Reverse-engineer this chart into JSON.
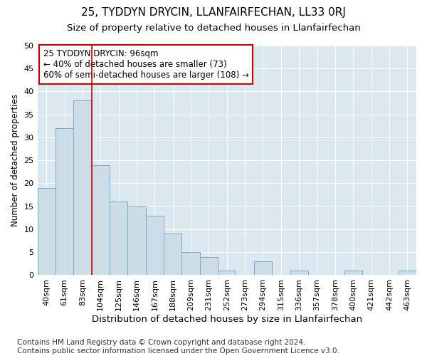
{
  "title": "25, TYDDYN DRYCIN, LLANFAIRFECHAN, LL33 0RJ",
  "subtitle": "Size of property relative to detached houses in Llanfairfechan",
  "xlabel": "Distribution of detached houses by size in Llanfairfechan",
  "ylabel": "Number of detached properties",
  "categories": [
    "40sqm",
    "61sqm",
    "83sqm",
    "104sqm",
    "125sqm",
    "146sqm",
    "167sqm",
    "188sqm",
    "209sqm",
    "231sqm",
    "252sqm",
    "273sqm",
    "294sqm",
    "315sqm",
    "336sqm",
    "357sqm",
    "378sqm",
    "400sqm",
    "421sqm",
    "442sqm",
    "463sqm"
  ],
  "values": [
    19,
    32,
    38,
    24,
    16,
    15,
    13,
    9,
    5,
    4,
    1,
    0,
    3,
    0,
    1,
    0,
    0,
    1,
    0,
    0,
    1
  ],
  "bar_color": "#ccdde8",
  "bar_edge_color": "#7aaac8",
  "vline_x": 2.5,
  "vline_color": "#cc0000",
  "annotation_box_text": "25 TYDDYN DRYCIN: 96sqm\n← 40% of detached houses are smaller (73)\n60% of semi-detached houses are larger (108) →",
  "annotation_box_color": "white",
  "annotation_box_edge_color": "#cc0000",
  "ylim": [
    0,
    50
  ],
  "yticks": [
    0,
    5,
    10,
    15,
    20,
    25,
    30,
    35,
    40,
    45,
    50
  ],
  "footnote": "Contains HM Land Registry data © Crown copyright and database right 2024.\nContains public sector information licensed under the Open Government Licence v3.0.",
  "figure_bg_color": "#ffffff",
  "plot_bg_color": "#dce8f0",
  "grid_color": "#ffffff",
  "title_fontsize": 11,
  "subtitle_fontsize": 9.5,
  "xlabel_fontsize": 9.5,
  "ylabel_fontsize": 8.5,
  "tick_fontsize": 8,
  "annotation_fontsize": 8.5,
  "footnote_fontsize": 7.5
}
